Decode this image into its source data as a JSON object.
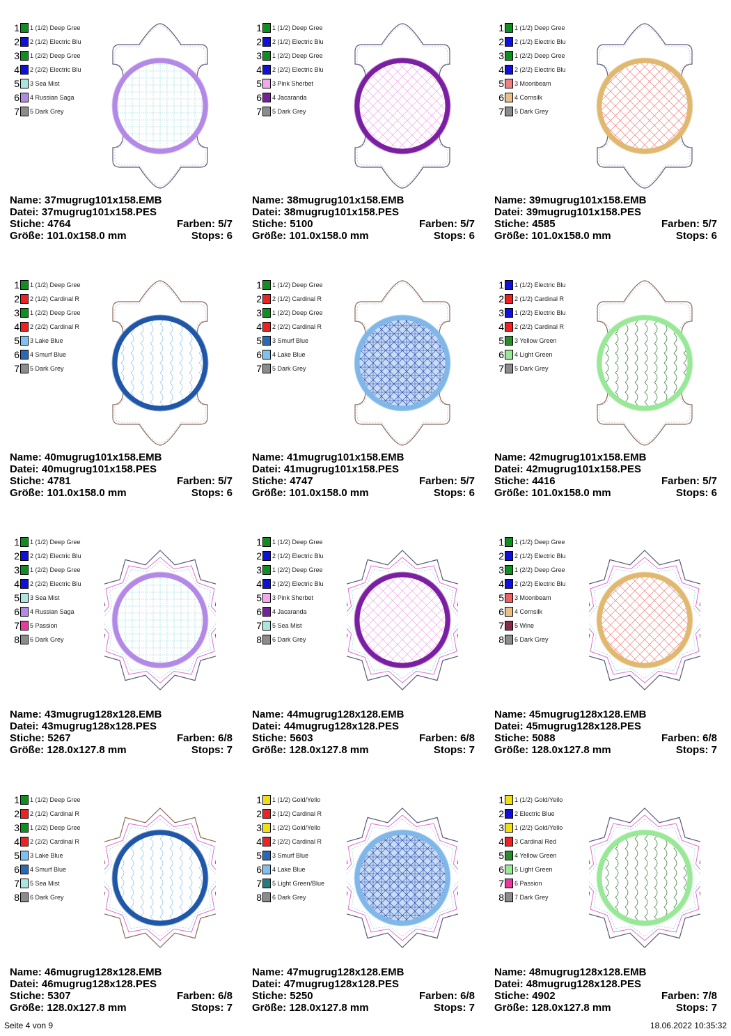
{
  "labels": {
    "name": "Name:",
    "datei": "Datei:",
    "stiche": "Stiche:",
    "farben": "Farben:",
    "groesse": "Größe:",
    "stops": "Stops:"
  },
  "designs": [
    {
      "shape": "bracket",
      "ring_color": "#b388e6",
      "fill_color": "#8fd8d8",
      "pattern": "grid",
      "name": "37mugrug101x158.EMB",
      "datei": "37mugrug101x158.PES",
      "stiche": "4764",
      "farben": "5/7",
      "groesse": "101.0x158.0 mm",
      "stops": "6",
      "legend": [
        {
          "num": "1",
          "color": "#0f8f1f",
          "label": "1 (1/2) Deep Gree"
        },
        {
          "num": "2",
          "color": "#1010dd",
          "label": "2 (1/2) Electric Blu"
        },
        {
          "num": "3",
          "color": "#0f8f1f",
          "label": "1 (2/2) Deep Gree"
        },
        {
          "num": "4",
          "color": "#1010dd",
          "label": "2 (2/2) Electric Blu"
        },
        {
          "num": "5",
          "color": "#a8e6e0",
          "label": "3 Sea Mist"
        },
        {
          "num": "6",
          "color": "#b388e6",
          "label": "4 Russian Saga"
        },
        {
          "num": "7",
          "color": "#8c8c8c",
          "label": "5 Dark Grey"
        }
      ]
    },
    {
      "shape": "bracket",
      "ring_color": "#7b1fa2",
      "fill_color": "#f0a8e8",
      "pattern": "diamond",
      "name": "38mugrug101x158.EMB",
      "datei": "38mugrug101x158.PES",
      "stiche": "5100",
      "farben": "5/7",
      "groesse": "101.0x158.0 mm",
      "stops": "6",
      "legend": [
        {
          "num": "1",
          "color": "#0f8f1f",
          "label": "1 (1/2) Deep Gree"
        },
        {
          "num": "2",
          "color": "#1010dd",
          "label": "2 (1/2) Electric Blu"
        },
        {
          "num": "3",
          "color": "#0f8f1f",
          "label": "1 (2/2) Deep Gree"
        },
        {
          "num": "4",
          "color": "#1010dd",
          "label": "2 (2/2) Electric Blu"
        },
        {
          "num": "5",
          "color": "#f6a6f0",
          "label": "3 Pink Sherbet"
        },
        {
          "num": "6",
          "color": "#7b1fa2",
          "label": "4 Jacaranda"
        },
        {
          "num": "7",
          "color": "#8c8c8c",
          "label": "5 Dark Grey"
        }
      ]
    },
    {
      "shape": "bracket",
      "ring_color": "#e0b870",
      "fill_color": "#f08080",
      "pattern": "diamond",
      "name": "39mugrug101x158.EMB",
      "datei": "39mugrug101x158.PES",
      "stiche": "4585",
      "farben": "5/7",
      "groesse": "101.0x158.0 mm",
      "stops": "6",
      "legend": [
        {
          "num": "1",
          "color": "#0f8f1f",
          "label": "1 (1/2) Deep Gree"
        },
        {
          "num": "2",
          "color": "#1010dd",
          "label": "2 (1/2) Electric Blu"
        },
        {
          "num": "3",
          "color": "#0f8f1f",
          "label": "1 (2/2) Deep Gree"
        },
        {
          "num": "4",
          "color": "#1010dd",
          "label": "2 (2/2) Electric Blu"
        },
        {
          "num": "5",
          "color": "#f08080",
          "label": "3 Moonbeam"
        },
        {
          "num": "6",
          "color": "#e8c088",
          "label": "4 Cornsilk"
        },
        {
          "num": "7",
          "color": "#8c8c8c",
          "label": "5 Dark Grey"
        }
      ]
    },
    {
      "shape": "bracket",
      "ring_color": "#1f56a8",
      "fill_color": "#8ec4ee",
      "pattern": "wave",
      "name": "40mugrug101x158.EMB",
      "datei": "40mugrug101x158.PES",
      "stiche": "4781",
      "farben": "5/7",
      "groesse": "101.0x158.0 mm",
      "stops": "6",
      "legend": [
        {
          "num": "1",
          "color": "#0f8f1f",
          "label": "1 (1/2) Deep Gree"
        },
        {
          "num": "2",
          "color": "#ee2222",
          "label": "2 (1/2) Cardinal R"
        },
        {
          "num": "3",
          "color": "#0f8f1f",
          "label": "1 (2/2) Deep Gree"
        },
        {
          "num": "4",
          "color": "#ee2222",
          "label": "2 (2/2) Cardinal R"
        },
        {
          "num": "5",
          "color": "#80c0f0",
          "label": "3 Lake Blue"
        },
        {
          "num": "6",
          "color": "#2a68b8",
          "label": "4 Smurf Blue"
        },
        {
          "num": "7",
          "color": "#8c8c8c",
          "label": "5 Dark Grey"
        }
      ]
    },
    {
      "shape": "bracket",
      "ring_color": "#7fb8e8",
      "fill_color": "#1a3aa8",
      "pattern": "star",
      "name": "41mugrug101x158.EMB",
      "datei": "41mugrug101x158.PES",
      "stiche": "4747",
      "farben": "5/7",
      "groesse": "101.0x158.0 mm",
      "stops": "6",
      "legend": [
        {
          "num": "1",
          "color": "#0f8f1f",
          "label": "1 (1/2) Deep Gree"
        },
        {
          "num": "2",
          "color": "#ee2222",
          "label": "2 (1/2) Cardinal R"
        },
        {
          "num": "3",
          "color": "#0f8f1f",
          "label": "1 (2/2) Deep Gree"
        },
        {
          "num": "4",
          "color": "#ee2222",
          "label": "2 (2/2) Cardinal R"
        },
        {
          "num": "5",
          "color": "#2a68b8",
          "label": "3 Smurf Blue"
        },
        {
          "num": "6",
          "color": "#80c0f0",
          "label": "4 Lake Blue"
        },
        {
          "num": "7",
          "color": "#8c8c8c",
          "label": "5 Dark Grey"
        }
      ]
    },
    {
      "shape": "bracket",
      "ring_color": "#98e898",
      "fill_color": "#3a7a3a",
      "pattern": "wave",
      "name": "42mugrug101x158.EMB",
      "datei": "42mugrug101x158.PES",
      "stiche": "4416",
      "farben": "5/7",
      "groesse": "101.0x158.0 mm",
      "stops": "6",
      "legend": [
        {
          "num": "1",
          "color": "#1010dd",
          "label": "1 (1/2) Electric Blu"
        },
        {
          "num": "2",
          "color": "#ee2222",
          "label": "2 (1/2) Cardinal R"
        },
        {
          "num": "3",
          "color": "#1010dd",
          "label": "1 (2/2) Electric Blu"
        },
        {
          "num": "4",
          "color": "#ee2222",
          "label": "2 (2/2) Cardinal R"
        },
        {
          "num": "5",
          "color": "#2f8a2f",
          "label": "3 Yellow Green"
        },
        {
          "num": "6",
          "color": "#98e898",
          "label": "4 Light Green"
        },
        {
          "num": "7",
          "color": "#8c8c8c",
          "label": "5 Dark Grey"
        }
      ]
    },
    {
      "shape": "star",
      "ring_color": "#b388e6",
      "fill_color": "#8fd8d8",
      "pattern": "grid",
      "name": "43mugrug128x128.EMB",
      "datei": "43mugrug128x128.PES",
      "stiche": "5267",
      "farben": "6/8",
      "groesse": "128.0x127.8 mm",
      "stops": "7",
      "legend": [
        {
          "num": "1",
          "color": "#0f8f1f",
          "label": "1 (1/2) Deep Gree"
        },
        {
          "num": "2",
          "color": "#1010dd",
          "label": "2 (1/2) Electric Blu"
        },
        {
          "num": "3",
          "color": "#0f8f1f",
          "label": "1 (2/2) Deep Gree"
        },
        {
          "num": "4",
          "color": "#1010dd",
          "label": "2 (2/2) Electric Blu"
        },
        {
          "num": "5",
          "color": "#a8e6e0",
          "label": "3 Sea Mist"
        },
        {
          "num": "6",
          "color": "#b388e6",
          "label": "4 Russian Saga"
        },
        {
          "num": "7",
          "color": "#e83a9a",
          "label": "5 Passion"
        },
        {
          "num": "8",
          "color": "#8c8c8c",
          "label": "6 Dark Grey"
        }
      ]
    },
    {
      "shape": "star",
      "ring_color": "#7b1fa2",
      "fill_color": "#f0a8e8",
      "pattern": "diamond",
      "name": "44mugrug128x128.EMB",
      "datei": "44mugrug128x128.PES",
      "stiche": "5603",
      "farben": "6/8",
      "groesse": "128.0x127.8 mm",
      "stops": "7",
      "legend": [
        {
          "num": "1",
          "color": "#0f8f1f",
          "label": "1 (1/2) Deep Gree"
        },
        {
          "num": "2",
          "color": "#1010dd",
          "label": "2 (1/2) Electric Blu"
        },
        {
          "num": "3",
          "color": "#0f8f1f",
          "label": "1 (2/2) Deep Gree"
        },
        {
          "num": "4",
          "color": "#1010dd",
          "label": "2 (2/2) Electric Blu"
        },
        {
          "num": "5",
          "color": "#f6a6f0",
          "label": "3 Pink Sherbet"
        },
        {
          "num": "6",
          "color": "#7b1fa2",
          "label": "4 Jacaranda"
        },
        {
          "num": "7",
          "color": "#a8e6e0",
          "label": "5 Sea Mist"
        },
        {
          "num": "8",
          "color": "#8c8c8c",
          "label": "6 Dark Grey"
        }
      ]
    },
    {
      "shape": "star",
      "ring_color": "#e0b870",
      "fill_color": "#f08080",
      "pattern": "diamond",
      "name": "45mugrug128x128.EMB",
      "datei": "45mugrug128x128.PES",
      "stiche": "5088",
      "farben": "6/8",
      "groesse": "128.0x127.8 mm",
      "stops": "7",
      "legend": [
        {
          "num": "1",
          "color": "#0f8f1f",
          "label": "1 (1/2) Deep Gree"
        },
        {
          "num": "2",
          "color": "#1010dd",
          "label": "2 (1/2) Electric Blu"
        },
        {
          "num": "3",
          "color": "#0f8f1f",
          "label": "1 (2/2) Deep Gree"
        },
        {
          "num": "4",
          "color": "#1010dd",
          "label": "2 (2/2) Electric Blu"
        },
        {
          "num": "5",
          "color": "#f06060",
          "label": "3 Moonbeam"
        },
        {
          "num": "6",
          "color": "#e8c088",
          "label": "4 Cornsilk"
        },
        {
          "num": "7",
          "color": "#8a2a4a",
          "label": "5 Wine"
        },
        {
          "num": "8",
          "color": "#8c8c8c",
          "label": "6 Dark Grey"
        }
      ]
    },
    {
      "shape": "star",
      "ring_color": "#1f56a8",
      "fill_color": "#8ec4ee",
      "pattern": "wave",
      "name": "46mugrug128x128.EMB",
      "datei": "46mugrug128x128.PES",
      "stiche": "5307",
      "farben": "6/8",
      "groesse": "128.0x127.8 mm",
      "stops": "7",
      "legend": [
        {
          "num": "1",
          "color": "#0f8f1f",
          "label": "1 (1/2) Deep Gree"
        },
        {
          "num": "2",
          "color": "#ee2222",
          "label": "2 (1/2) Cardinal R"
        },
        {
          "num": "3",
          "color": "#0f8f1f",
          "label": "1 (2/2) Deep Gree"
        },
        {
          "num": "4",
          "color": "#ee2222",
          "label": "2 (2/2) Cardinal R"
        },
        {
          "num": "5",
          "color": "#80c0f0",
          "label": "3 Lake Blue"
        },
        {
          "num": "6",
          "color": "#2a68b8",
          "label": "4 Smurf Blue"
        },
        {
          "num": "7",
          "color": "#a8e6e0",
          "label": "5 Sea Mist"
        },
        {
          "num": "8",
          "color": "#8c8c8c",
          "label": "6 Dark Grey"
        }
      ]
    },
    {
      "shape": "star",
      "ring_color": "#7fb8e8",
      "fill_color": "#1a3aa8",
      "pattern": "star",
      "name": "47mugrug128x128.EMB",
      "datei": "47mugrug128x128.PES",
      "stiche": "5250",
      "farben": "6/8",
      "groesse": "128.0x127.8 mm",
      "stops": "7",
      "legend": [
        {
          "num": "1",
          "color": "#f0e010",
          "label": "1 (1/2) Gold/Yello"
        },
        {
          "num": "2",
          "color": "#ee2222",
          "label": "2 (1/2) Cardinal R"
        },
        {
          "num": "3",
          "color": "#f0e010",
          "label": "1 (2/2) Gold/Yello"
        },
        {
          "num": "4",
          "color": "#ee2222",
          "label": "2 (2/2) Cardinal R"
        },
        {
          "num": "5",
          "color": "#2a68b8",
          "label": "3 Smurf Blue"
        },
        {
          "num": "6",
          "color": "#80c0f0",
          "label": "4 Lake Blue"
        },
        {
          "num": "7",
          "color": "#1e7f7f",
          "label": "5 Light Green/Blue"
        },
        {
          "num": "8",
          "color": "#8c8c8c",
          "label": "6 Dark Grey"
        }
      ]
    },
    {
      "shape": "star",
      "ring_color": "#98e898",
      "fill_color": "#3a7a3a",
      "pattern": "wave",
      "name": "48mugrug128x128.EMB",
      "datei": "48mugrug128x128.PES",
      "stiche": "4902",
      "farben": "7/8",
      "groesse": "128.0x127.8 mm",
      "stops": "7",
      "legend": [
        {
          "num": "1",
          "color": "#f0e010",
          "label": "1 (1/2) Gold/Yello"
        },
        {
          "num": "2",
          "color": "#1010dd",
          "label": "2 Electric Blue"
        },
        {
          "num": "3",
          "color": "#f0e010",
          "label": "1 (2/2) Gold/Yello"
        },
        {
          "num": "4",
          "color": "#ee2222",
          "label": "3 Cardinal Red"
        },
        {
          "num": "5",
          "color": "#2f8a2f",
          "label": "4 Yellow Green"
        },
        {
          "num": "6",
          "color": "#98e898",
          "label": "5 Light Green"
        },
        {
          "num": "7",
          "color": "#e83a9a",
          "label": "6 Passion"
        },
        {
          "num": "8",
          "color": "#8c8c8c",
          "label": "7 Dark Grey"
        }
      ]
    }
  ],
  "footer": {
    "page": "Seite 4 von 9",
    "timestamp": "18.06.2022 10:35:32"
  }
}
